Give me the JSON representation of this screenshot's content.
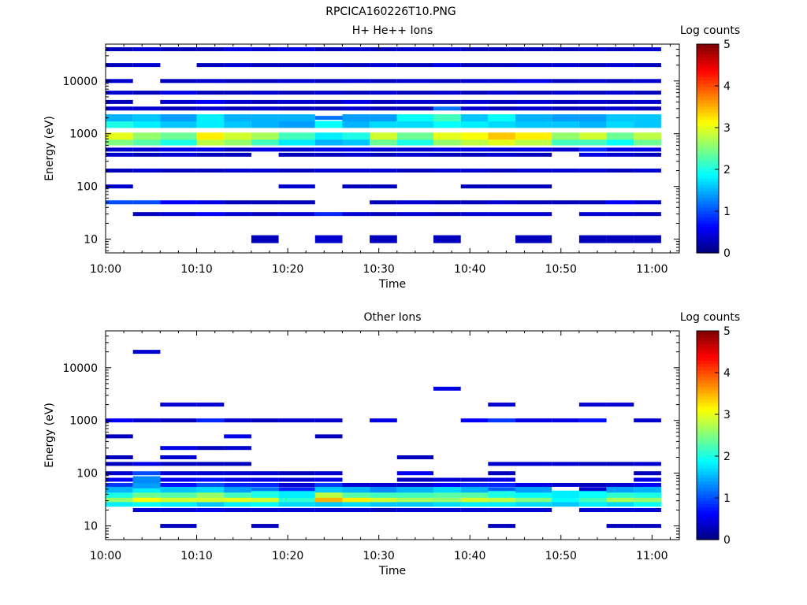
{
  "figure_title": "RPCICA160226T10.PNG",
  "chart_data": [
    {
      "type": "heatmap",
      "title": "H+ He++ Ions",
      "xlabel": "Time",
      "ylabel": "Energy (eV)",
      "x_range": [
        "10:00",
        "11:03"
      ],
      "x_ticks": [
        "10:00",
        "10:10",
        "10:20",
        "10:30",
        "10:40",
        "10:50",
        "11:00"
      ],
      "y_scale": "log",
      "y_range": [
        5.5,
        50000
      ],
      "y_ticks": [
        "10",
        "100",
        "1000",
        "10000"
      ],
      "colorbar": {
        "label": "Log counts",
        "range": [
          0,
          5
        ],
        "ticks": [
          "0",
          "1",
          "2",
          "3",
          "4",
          "5"
        ]
      },
      "grid": false,
      "time_bins": [
        "10:00",
        "10:03",
        "10:06",
        "10:10",
        "10:13",
        "10:16",
        "10:19",
        "10:23",
        "10:26",
        "10:29",
        "10:32",
        "10:36",
        "10:39",
        "10:42",
        "10:45",
        "10:49",
        "10:52",
        "10:55",
        "10:58"
      ],
      "energy_bins": [
        10,
        30,
        50,
        100,
        200,
        400,
        500,
        700,
        900,
        1500,
        2000,
        3000,
        4000,
        6000,
        10000,
        20000,
        40000
      ],
      "values": [
        [
          0,
          0,
          1,
          0.4,
          0.3,
          0.4,
          0.4,
          2.5,
          3.0,
          2.0,
          1.5,
          0.4,
          0.3,
          0.4,
          0.4,
          0.3,
          0.3
        ],
        [
          0,
          0.3,
          1,
          0,
          0.4,
          0.3,
          0.4,
          2.3,
          2.6,
          1.8,
          1.6,
          0.4,
          0,
          0.3,
          0,
          0.4,
          0.4
        ],
        [
          0,
          0.4,
          0.6,
          0,
          0.3,
          0.4,
          0.5,
          2.0,
          2.4,
          1.6,
          1.4,
          0.3,
          0.4,
          0.5,
          0.3,
          0,
          0.3
        ],
        [
          0,
          0.6,
          0.5,
          0,
          0.3,
          0.3,
          0.5,
          2.8,
          3.2,
          1.8,
          1.8,
          0.4,
          0.6,
          0.3,
          0.4,
          0.3,
          0.3
        ],
        [
          0,
          0.4,
          0.3,
          0,
          0.4,
          0.3,
          0.3,
          2.6,
          2.9,
          1.6,
          1.5,
          0.3,
          0.4,
          0.3,
          0.3,
          0.4,
          0.5
        ],
        [
          0.3,
          0.3,
          0.3,
          0,
          0.4,
          0,
          0.5,
          2.2,
          2.7,
          1.5,
          1.5,
          0.4,
          0.3,
          0.4,
          0.3,
          0.3,
          0.4
        ],
        [
          0,
          0.4,
          0.3,
          0.4,
          0.3,
          0.3,
          0.4,
          1.8,
          2.2,
          1.4,
          1.5,
          0.3,
          0.4,
          0.3,
          0.4,
          0.3,
          0.5
        ],
        [
          0.4,
          0.8,
          0,
          0,
          0.4,
          0.3,
          0.5,
          1.5,
          1.8,
          1.9,
          1.2,
          0.3,
          0.3,
          0.4,
          0.3,
          0.4,
          0.3
        ],
        [
          0,
          0.4,
          0,
          0.3,
          0.4,
          0.4,
          0.5,
          1.6,
          2.0,
          1.5,
          1.4,
          0.4,
          0.5,
          0.3,
          0.4,
          0.3,
          0.4
        ],
        [
          0.3,
          0.3,
          0.3,
          0.3,
          0.4,
          0.3,
          0.4,
          2.4,
          2.9,
          1.7,
          1.4,
          0.3,
          0.3,
          0.4,
          0.3,
          0.4,
          0.3
        ],
        [
          0,
          0.4,
          0.4,
          0,
          0.3,
          0.4,
          0.4,
          2.0,
          2.4,
          1.7,
          1.9,
          0.3,
          0.4,
          0.3,
          0.4,
          0.3,
          0.4
        ],
        [
          0.3,
          0.3,
          0.3,
          0,
          0.4,
          0.3,
          0.5,
          2.6,
          3.0,
          1.9,
          2.2,
          1.2,
          0.3,
          0.4,
          0.3,
          0.5,
          0.4
        ],
        [
          0,
          0.4,
          0.3,
          0.3,
          0.4,
          0.3,
          0.5,
          2.8,
          3.1,
          1.8,
          1.6,
          0.4,
          0.4,
          0.3,
          0.4,
          0.3,
          0.3
        ],
        [
          0,
          0.4,
          0.4,
          0.3,
          0.3,
          0.4,
          0.4,
          3.0,
          3.4,
          1.7,
          1.9,
          0.3,
          0.3,
          0.4,
          0.4,
          0.3,
          0.3
        ],
        [
          0.3,
          0.4,
          0.3,
          0.3,
          0.4,
          0.3,
          0.5,
          2.8,
          3.2,
          1.6,
          1.5,
          0.4,
          0.4,
          0.3,
          0.5,
          0.4,
          0.3
        ],
        [
          0,
          0,
          0.3,
          0,
          0.4,
          0,
          0.4,
          2.2,
          2.6,
          1.6,
          1.4,
          0.3,
          0.3,
          0.4,
          0.3,
          0.4,
          0.3
        ],
        [
          0.3,
          0.4,
          0.3,
          0,
          0.4,
          0.5,
          0.8,
          2.2,
          2.9,
          1.5,
          1.4,
          0.3,
          0.4,
          0.3,
          0.4,
          0.3,
          0.4
        ],
        [
          0.3,
          0.4,
          0.6,
          0,
          0.3,
          0.4,
          0.5,
          1.9,
          2.4,
          1.7,
          1.6,
          0.4,
          0.3,
          0.4,
          0.3,
          0.4,
          0.3
        ],
        [
          0.3,
          0.3,
          0.4,
          0,
          0.4,
          0.3,
          0.5,
          2.4,
          2.8,
          1.6,
          1.6,
          0.3,
          0.4,
          0.3,
          0.4,
          0.3,
          0.4
        ]
      ]
    },
    {
      "type": "heatmap",
      "title": "Other Ions",
      "xlabel": "Time",
      "ylabel": "Energy (eV)",
      "x_range": [
        "10:00",
        "11:03"
      ],
      "x_ticks": [
        "10:00",
        "10:10",
        "10:20",
        "10:30",
        "10:40",
        "10:50",
        "11:00"
      ],
      "y_scale": "log",
      "y_range": [
        5.5,
        50000
      ],
      "y_ticks": [
        "10",
        "100",
        "1000",
        "10000"
      ],
      "colorbar": {
        "label": "Log counts",
        "range": [
          0,
          5
        ],
        "ticks": [
          "0",
          "1",
          "2",
          "3",
          "4",
          "5"
        ]
      },
      "grid": false,
      "time_bins": [
        "10:00",
        "10:03",
        "10:06",
        "10:10",
        "10:13",
        "10:16",
        "10:19",
        "10:23",
        "10:26",
        "10:29",
        "10:32",
        "10:36",
        "10:39",
        "10:42",
        "10:45",
        "10:49",
        "10:52",
        "10:55",
        "10:58"
      ],
      "energy_bins": [
        10,
        20,
        27,
        33,
        40,
        50,
        60,
        75,
        100,
        150,
        200,
        300,
        500,
        1000,
        2000,
        4000,
        20000
      ],
      "values": [
        [
          0,
          0,
          1.8,
          2.6,
          2.0,
          1.5,
          0.9,
          0.6,
          0.4,
          0.3,
          0.3,
          0,
          0.3,
          0.6,
          0,
          0,
          0
        ],
        [
          0,
          0.4,
          1.9,
          3.1,
          2.4,
          1.8,
          1.4,
          1.3,
          1.0,
          0.5,
          0,
          0,
          0,
          0.4,
          0,
          0,
          0.4
        ],
        [
          0.3,
          0.4,
          1.8,
          2.9,
          2.3,
          1.6,
          0.7,
          0.6,
          0.4,
          0.3,
          0.4,
          0.5,
          0,
          0.3,
          0.4,
          0,
          0
        ],
        [
          0,
          0.5,
          1.6,
          2.9,
          2.6,
          1.7,
          1.0,
          0.7,
          0.4,
          0.3,
          0,
          0.3,
          0,
          0.8,
          0.4,
          0,
          0
        ],
        [
          0,
          0.4,
          1.8,
          3.0,
          2.2,
          1.4,
          0.8,
          0.5,
          0.4,
          0.3,
          0,
          0.4,
          0.5,
          0.4,
          0,
          0,
          0
        ],
        [
          0.3,
          0.4,
          1.9,
          2.9,
          2.0,
          1.2,
          0.8,
          0.5,
          0.4,
          0,
          0,
          0,
          0,
          0.3,
          0,
          0,
          0
        ],
        [
          0,
          0.4,
          1.7,
          2.1,
          1.8,
          0.8,
          0.4,
          0.4,
          0.3,
          0,
          0,
          0,
          0,
          0.4,
          0,
          0,
          0
        ],
        [
          0,
          0.4,
          1.6,
          3.5,
          2.8,
          1.6,
          0.9,
          0.5,
          0.4,
          0,
          0,
          0,
          0.3,
          0.4,
          0,
          0,
          0
        ],
        [
          0,
          0.4,
          1.7,
          3.2,
          2.3,
          1.5,
          0.4,
          0,
          0,
          0,
          0,
          0,
          0,
          0,
          0,
          0,
          0
        ],
        [
          0,
          0.3,
          1.6,
          2.9,
          2.2,
          1.3,
          0.4,
          0,
          0,
          0,
          0,
          0,
          0,
          0.5,
          0,
          0,
          0
        ],
        [
          0,
          0.4,
          1.6,
          2.7,
          2.2,
          1.5,
          0.4,
          0.3,
          0.6,
          0,
          0.3,
          0,
          0,
          0,
          0,
          0,
          0
        ],
        [
          0,
          0.4,
          1.7,
          2.6,
          2.3,
          1.7,
          0.6,
          0.4,
          0,
          0,
          0,
          0,
          0,
          0,
          0,
          0.5,
          0
        ],
        [
          0,
          0.4,
          1.8,
          2.9,
          2.3,
          1.5,
          0.8,
          0.4,
          0,
          0,
          0,
          0,
          0,
          0.6,
          0,
          0,
          0
        ],
        [
          0.3,
          0.4,
          1.8,
          2.8,
          2.0,
          1.1,
          0.8,
          0.5,
          0.3,
          0.4,
          0,
          0,
          0,
          0.9,
          0.4,
          0,
          0
        ],
        [
          0,
          0.4,
          1.7,
          2.5,
          1.9,
          1.4,
          0.5,
          0,
          0,
          0.4,
          0,
          0,
          0,
          0.5,
          0,
          0,
          0
        ],
        [
          0,
          0,
          1.6,
          1.9,
          1.8,
          0,
          0.4,
          0,
          0,
          0.4,
          0,
          0,
          0,
          0.5,
          0,
          0,
          0
        ],
        [
          0,
          0.4,
          1.8,
          2.2,
          1.9,
          0.4,
          0.3,
          0,
          0,
          0.3,
          0,
          0,
          0,
          0.7,
          0.4,
          0,
          0
        ],
        [
          0.3,
          0.4,
          1.7,
          2.7,
          2.1,
          1.4,
          0.4,
          0,
          0,
          0.3,
          0,
          0,
          0,
          0,
          0.4,
          0,
          0
        ],
        [
          0.3,
          0.4,
          1.9,
          2.6,
          2.0,
          1.5,
          0.6,
          0.5,
          0.3,
          0.4,
          0,
          0,
          0,
          0.4,
          0,
          0,
          0
        ]
      ]
    }
  ]
}
